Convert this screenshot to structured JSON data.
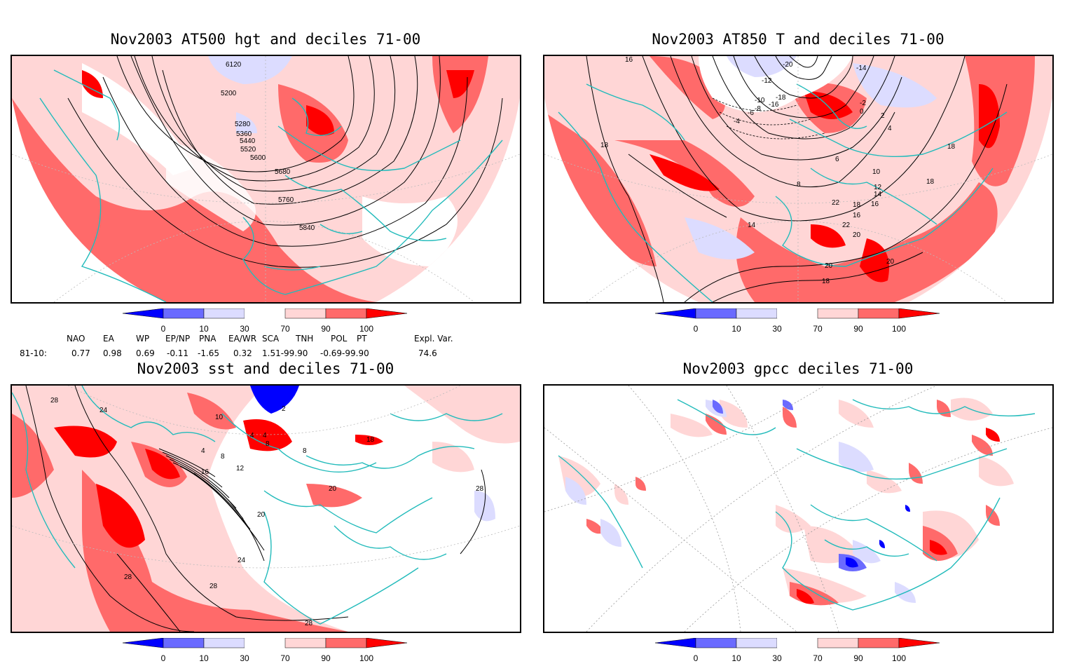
{
  "panels": [
    {
      "id": "p1",
      "title": "Nov2003 AT500 hgt and deciles 71-00",
      "contour_labels": [
        "6120",
        "5200",
        "5280",
        "5360",
        "5440",
        "5520",
        "5600",
        "5680",
        "5760",
        "5840"
      ]
    },
    {
      "id": "p2",
      "title": "Nov2003 AT850 T and deciles 71-00",
      "contour_labels": [
        "16",
        "18",
        "-20",
        "-18",
        "-16",
        "-14",
        "-12",
        "-10",
        "-8",
        "-6",
        "-4",
        "-2",
        "0",
        "2",
        "4",
        "6",
        "8",
        "10",
        "12",
        "14",
        "16",
        "18",
        "20",
        "22",
        "20",
        "18",
        "22",
        "20",
        "18",
        "16",
        "14",
        "18"
      ]
    },
    {
      "id": "p3",
      "title": "Nov2003 sst and deciles 71-00",
      "contour_labels": [
        "28",
        "24",
        "10",
        "4",
        "8",
        "12",
        "16",
        "20",
        "24",
        "28",
        "28",
        "28",
        "2",
        "4",
        "4",
        "8",
        "8",
        "20",
        "18",
        "28"
      ]
    },
    {
      "id": "p4",
      "title": "Nov2003 gpcc deciles 71-00",
      "contour_labels": []
    }
  ],
  "colorbar": {
    "tick_labels": [
      "0",
      "10",
      "30",
      "70",
      "90",
      "100"
    ],
    "colors": [
      "#0000ff",
      "#6a6aff",
      "#dcdcff",
      "#ffffff",
      "#ffd6d6",
      "#ff6a6a",
      "#ff0000"
    ]
  },
  "indices": {
    "headers": [
      "NAO",
      "EA",
      "WP",
      "EP/NP",
      "PNA",
      "EA/WR",
      "SCA",
      "TNH",
      "POL",
      "PT",
      "Expl. Var."
    ],
    "row_label": "81-10:",
    "values": [
      "0.77",
      "0.98",
      "0.69",
      "-0.11",
      "-1.65",
      "0.32",
      "1.51-99.90",
      "-0.69-99.90",
      "74.6"
    ]
  }
}
